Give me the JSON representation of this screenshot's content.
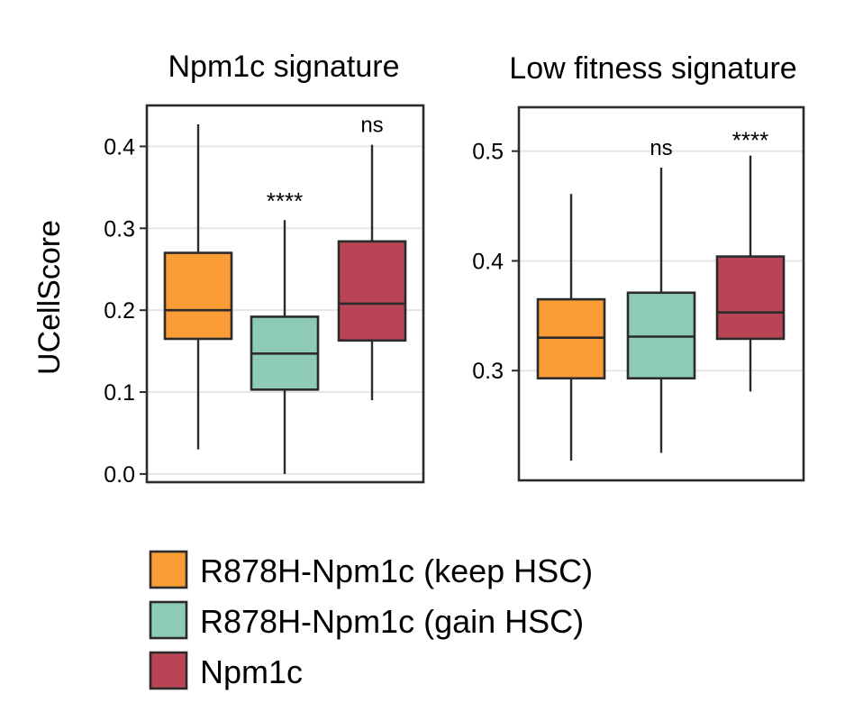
{
  "colors": {
    "keep": "#FB9D37",
    "gain": "#8DCBB8",
    "npm1c": "#B94456",
    "grid": "#E6E6E6",
    "line": "#2B2B2B"
  },
  "ylabel": "UCellScore",
  "legend": {
    "placement": "bottom",
    "items": [
      {
        "label": "R878H-Npm1c (keep HSC)",
        "color_key": "keep"
      },
      {
        "label": "R878H-Npm1c (gain HSC)",
        "color_key": "gain"
      },
      {
        "label": "Npm1c",
        "color_key": "npm1c"
      }
    ]
  },
  "chart_data": [
    {
      "type": "box",
      "title": "Npm1c signature",
      "ylabel": "UCellScore",
      "ylim": [
        -0.01,
        0.45
      ],
      "yticks": [
        "0.0",
        "0.1",
        "0.2",
        "0.3",
        "0.4"
      ],
      "grid": true,
      "categories": [
        "R878H-Npm1c (keep HSC)",
        "R878H-Npm1c (gain HSC)",
        "Npm1c"
      ],
      "boxes": [
        {
          "min": 0.03,
          "q1": 0.165,
          "median": 0.2,
          "q3": 0.27,
          "max": 0.427,
          "color_key": "keep",
          "annotation": ""
        },
        {
          "min": 0.0,
          "q1": 0.103,
          "median": 0.147,
          "q3": 0.192,
          "max": 0.31,
          "color_key": "gain",
          "annotation": "****"
        },
        {
          "min": 0.09,
          "q1": 0.163,
          "median": 0.208,
          "q3": 0.284,
          "max": 0.402,
          "color_key": "npm1c",
          "annotation": "ns"
        }
      ]
    },
    {
      "type": "box",
      "title": "Low fitness signature",
      "ylabel": "",
      "ylim": [
        0.2,
        0.54
      ],
      "yticks": [
        "0.3",
        "0.4",
        "0.5"
      ],
      "grid": true,
      "categories": [
        "R878H-Npm1c (keep HSC)",
        "R878H-Npm1c (gain HSC)",
        "Npm1c"
      ],
      "boxes": [
        {
          "min": 0.218,
          "q1": 0.293,
          "median": 0.33,
          "q3": 0.365,
          "max": 0.461,
          "color_key": "keep",
          "annotation": ""
        },
        {
          "min": 0.225,
          "q1": 0.293,
          "median": 0.331,
          "q3": 0.371,
          "max": 0.485,
          "color_key": "gain",
          "annotation": "ns"
        },
        {
          "min": 0.281,
          "q1": 0.329,
          "median": 0.353,
          "q3": 0.404,
          "max": 0.496,
          "color_key": "npm1c",
          "annotation": "****"
        }
      ]
    }
  ]
}
